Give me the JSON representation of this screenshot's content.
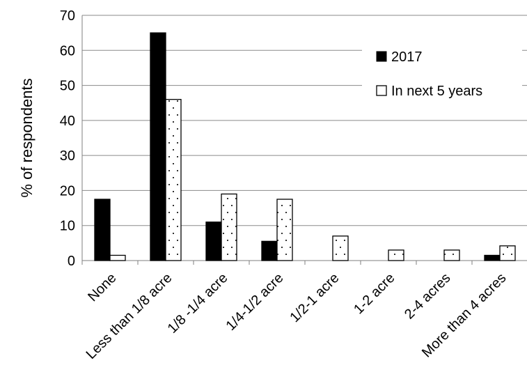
{
  "chart_data": {
    "type": "bar",
    "categories": [
      "None",
      "Less than 1/8 acre",
      "1/8 -1/4 acre",
      "1/4-1/2 acre",
      "1/2-1 acre",
      "1-2 acre",
      "2-4 acres",
      "More than 4 acres"
    ],
    "series": [
      {
        "name": "2017",
        "values": [
          17.5,
          65,
          11,
          5.5,
          0,
          0,
          0,
          1.5
        ],
        "color": "#000000",
        "pattern": "solid"
      },
      {
        "name": "In next 5 years",
        "values": [
          1.5,
          46,
          19,
          17.5,
          7,
          3,
          3,
          4.2
        ],
        "color": "#ffffff",
        "pattern": "dotted"
      }
    ],
    "title": "",
    "xlabel": "",
    "ylabel": "% of respondents",
    "ylim": [
      0,
      70
    ],
    "yticks": [
      "0",
      "10",
      "20",
      "30",
      "40",
      "50",
      "60",
      "70"
    ],
    "grid": true,
    "legend": "right"
  }
}
